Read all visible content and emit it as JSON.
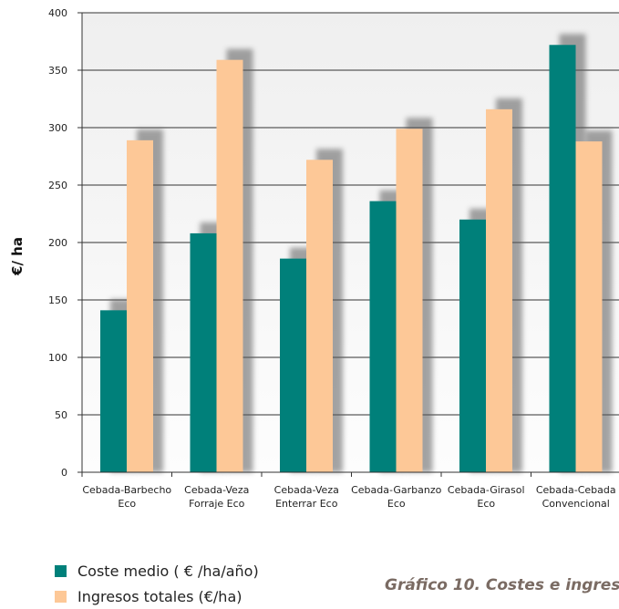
{
  "chart_data": {
    "type": "bar",
    "ylabel": "€/ ha",
    "ylim": [
      0,
      400
    ],
    "yticks": [
      0,
      50,
      100,
      150,
      200,
      250,
      300,
      350,
      400
    ],
    "grid": true,
    "legend_position": "bottom-left",
    "categories": [
      [
        "Cebada-Barbecho",
        "Eco"
      ],
      [
        "Cebada-Veza",
        "Forraje Eco"
      ],
      [
        "Cebada-Veza",
        "Enterrar Eco"
      ],
      [
        "Cebada-Garbanzo",
        "Eco"
      ],
      [
        "Cebada-Girasol",
        "Eco"
      ],
      [
        "Cebada-Cebada",
        "Convencional"
      ]
    ],
    "series": [
      {
        "name": "Coste medio ( € /ha/año)",
        "color": "#00807a",
        "values": [
          141,
          208,
          186,
          236,
          220,
          372
        ]
      },
      {
        "name": "Ingresos totales  (€/ha)",
        "color": "#fdc897",
        "values": [
          289,
          359,
          272,
          299,
          316,
          288
        ]
      }
    ]
  },
  "caption": "Gráfico 10. Costes e ingres"
}
